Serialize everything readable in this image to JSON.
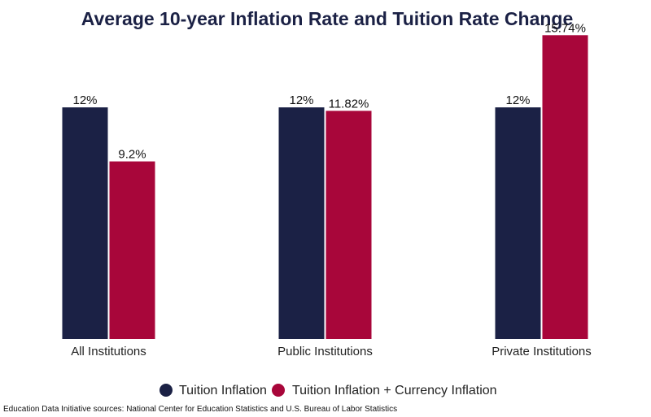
{
  "chart_data": {
    "type": "bar",
    "title": "Average 10-year Inflation Rate and Tuition Rate Change",
    "categories": [
      "All Institutions",
      "Public Institutions",
      "Private Institutions"
    ],
    "series": [
      {
        "name": "Tuition Inflation",
        "values": [
          12,
          12,
          12
        ],
        "labels": [
          "12%",
          "12%",
          "12%"
        ],
        "color": "#1b2145"
      },
      {
        "name": "Tuition Inflation + Currency Inflation",
        "values": [
          9.2,
          11.82,
          15.74
        ],
        "labels": [
          "9.2%",
          "11.82%",
          "15.74%"
        ],
        "color": "#a8063a"
      }
    ],
    "ylim": [
      0,
      16.3
    ],
    "grid": false,
    "legend_position": "bottom-center",
    "source": "Education Data Initiative sources: National Center for Education Statistics and U.S. Bureau of Labor Statistics"
  },
  "colors": {
    "title": "#1b2145",
    "background": "#ffffff"
  }
}
